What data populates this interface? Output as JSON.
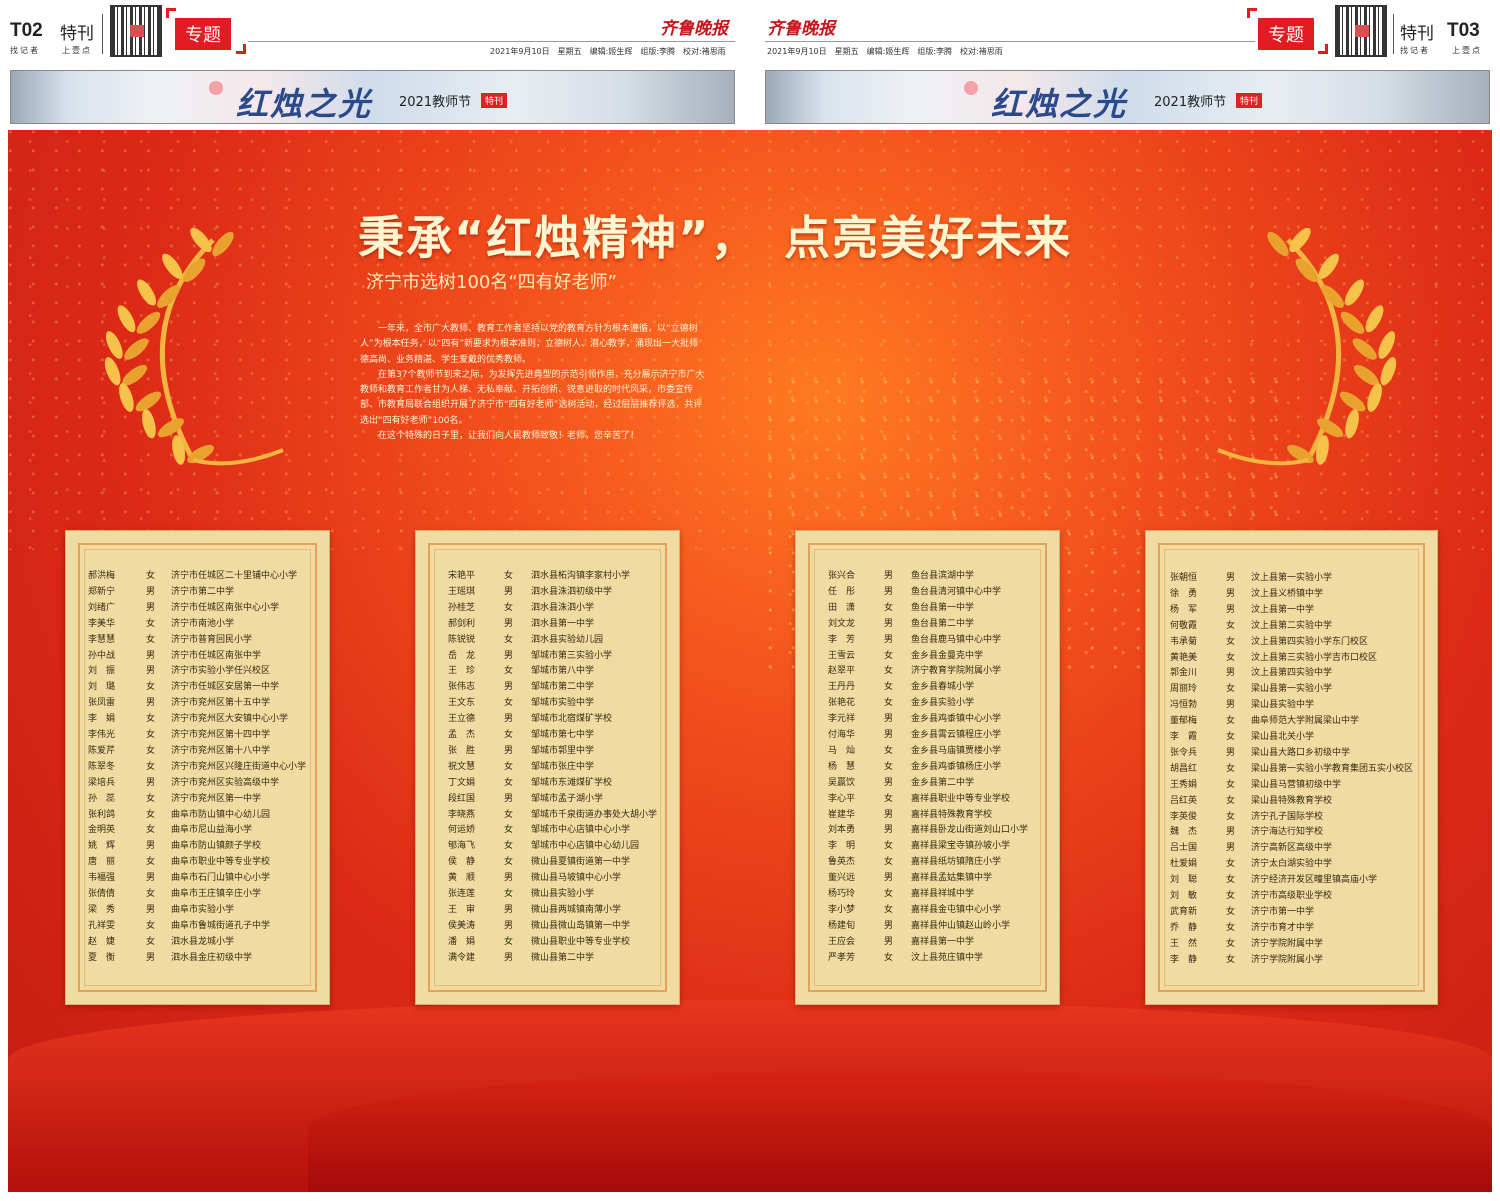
{
  "header_left": {
    "page": "T02",
    "section": "特刊",
    "tagline_left": "找记者",
    "tagline_right": "上壹点",
    "topic": "专题",
    "paper": "齐鲁晚报",
    "meta": "2021年9月10日　星期五　编辑:姬生辉　组版:李腾　校对:褚思雨"
  },
  "header_right": {
    "page": "T03",
    "section": "特刊",
    "tagline_left": "找记者",
    "tagline_right": "上壹点",
    "topic": "专题",
    "paper": "齐鲁晚报",
    "meta": "2021年9月10日　星期五　编辑:姬生辉　组版:李腾　校对:褚思雨"
  },
  "banner": {
    "title": "红烛之光",
    "subtitle": "2021教师节",
    "badge": "特刊"
  },
  "poster": {
    "title_a": "秉承“红烛精神”，",
    "title_b": "点亮美好未来",
    "subtitle": "济宁市选树100名“四有好老师”",
    "intro": [
      "一年来，全市广大教师、教育工作者坚持以党的教育方针为根本遵循，以“立德树人”为根本任务，以“四有”新要求为根本准则，立德树人、潜心教学，涌现出一大批师德高尚、业务精湛、学生爱戴的优秀教师。",
      "在第37个教师节到来之际，为发挥先进典型的示范引领作用，充分展示济宁市广大教师和教育工作者甘为人梯、无私奉献、开拓创新、锐意进取的时代风采，市委宣传部、市教育局联合组织开展了济宁市“四有好老师”选树活动，经过层层推荐评选，共评选出“四有好老师”100名。",
      "在这个特殊的日子里，让我们向人民教师致敬！老师，您辛苦了！"
    ]
  },
  "lists": [
    [
      [
        "郝洪梅",
        "女",
        "济宁市任城区二十里铺中心小学"
      ],
      [
        "郑新宁",
        "男",
        "济宁市第二中学"
      ],
      [
        "刘绪广",
        "男",
        "济宁市任城区南张中心小学"
      ],
      [
        "李美华",
        "女",
        "济宁市南池小学"
      ],
      [
        "李慧慧",
        "女",
        "济宁市普育回民小学"
      ],
      [
        "孙中战",
        "男",
        "济宁市任城区南张中学"
      ],
      [
        "刘　振",
        "男",
        "济宁市实验小学任兴校区"
      ],
      [
        "刘　璐",
        "女",
        "济宁市任城区安居第一中学"
      ],
      [
        "张凤雷",
        "男",
        "济宁市兖州区第十五中学"
      ],
      [
        "李　娟",
        "女",
        "济宁市兖州区大安镇中心小学"
      ],
      [
        "李伟光",
        "女",
        "济宁市兖州区第十四中学"
      ],
      [
        "陈爱芹",
        "女",
        "济宁市兖州区第十八中学"
      ],
      [
        "陈翠冬",
        "女",
        "济宁市兖州区兴隆庄街道中心小学"
      ],
      [
        "梁培兵",
        "男",
        "济宁市兖州区实验高级中学"
      ],
      [
        "孙　蕊",
        "女",
        "济宁市兖州区第一中学"
      ],
      [
        "张利鸽",
        "女",
        "曲阜市防山镇中心幼儿园"
      ],
      [
        "金明英",
        "女",
        "曲阜市尼山益海小学"
      ],
      [
        "姚　辉",
        "男",
        "曲阜市防山镇颜子学校"
      ],
      [
        "唐　丽",
        "女",
        "曲阜市职业中等专业学校"
      ],
      [
        "韦福强",
        "男",
        "曲阜市石门山镇中心小学"
      ],
      [
        "张倩倩",
        "女",
        "曲阜市王庄镇辛庄小学"
      ],
      [
        "梁　秀",
        "男",
        "曲阜市实验小学"
      ],
      [
        "孔祥雯",
        "女",
        "曲阜市鲁城街道孔子中学"
      ],
      [
        "赵　婕",
        "女",
        "泗水县龙城小学"
      ],
      [
        "夏　衡",
        "男",
        "泗水县金庄初级中学"
      ]
    ],
    [
      [
        "宋艳平",
        "女",
        "泗水县柘沟镇李家村小学"
      ],
      [
        "王瑶琪",
        "男",
        "泗水县洙泗初级中学"
      ],
      [
        "孙桂芝",
        "女",
        "泗水县洙泗小学"
      ],
      [
        "郝剑利",
        "男",
        "泗水县第一中学"
      ],
      [
        "陈锐锐",
        "女",
        "泗水县实验幼儿园"
      ],
      [
        "岳　龙",
        "男",
        "邹城市第三实验小学"
      ],
      [
        "王　珍",
        "女",
        "邹城市第八中学"
      ],
      [
        "张伟志",
        "男",
        "邹城市第二中学"
      ],
      [
        "王文东",
        "女",
        "邹城市实验中学"
      ],
      [
        "王立德",
        "男",
        "邹城市北宿煤矿学校"
      ],
      [
        "孟　杰",
        "女",
        "邹城市第七中学"
      ],
      [
        "张　胜",
        "男",
        "邹城市郭里中学"
      ],
      [
        "祝文慧",
        "女",
        "邹城市张庄中学"
      ],
      [
        "丁文娟",
        "女",
        "邹城市东滩煤矿学校"
      ],
      [
        "段红国",
        "男",
        "邹城市孟子湖小学"
      ],
      [
        "李晓燕",
        "女",
        "邹城市千泉街道办事处大胡小学"
      ],
      [
        "何运娇",
        "女",
        "邹城市中心店镇中心小学"
      ],
      [
        "郇海飞",
        "女",
        "邹城市中心店镇中心幼儿园"
      ],
      [
        "侯　静",
        "女",
        "微山县夏镇街道第一中学"
      ],
      [
        "黄　顺",
        "男",
        "微山县马坡镇中心小学"
      ],
      [
        "张连莲",
        "女",
        "微山县实验小学"
      ],
      [
        "王　审",
        "男",
        "微山县两城镇南薄小学"
      ],
      [
        "侯美涛",
        "男",
        "微山县微山岛镇第一中学"
      ],
      [
        "潘　娟",
        "女",
        "微山县职业中等专业学校"
      ],
      [
        "满令建",
        "男",
        "微山县第二中学"
      ]
    ],
    [
      [
        "张兴合",
        "男",
        "鱼台县滨湖中学"
      ],
      [
        "任　彤",
        "男",
        "鱼台县清河镇中心中学"
      ],
      [
        "田　潇",
        "女",
        "鱼台县第一中学"
      ],
      [
        "刘文龙",
        "男",
        "鱼台县第二中学"
      ],
      [
        "李　芳",
        "男",
        "鱼台县鹿马镇中心中学"
      ],
      [
        "王雪云",
        "女",
        "金乡县金曼克中学"
      ],
      [
        "赵翠平",
        "女",
        "济宁教育学院附属小学"
      ],
      [
        "王丹丹",
        "女",
        "金乡县春城小学"
      ],
      [
        "张艳花",
        "女",
        "金乡县实验小学"
      ],
      [
        "李元祥",
        "男",
        "金乡县鸡黍镇中心小学"
      ],
      [
        "付海华",
        "男",
        "金乡县霄云镇程庄小学"
      ],
      [
        "马　灿",
        "女",
        "金乡县马庙镇贾楼小学"
      ],
      [
        "杨　慧",
        "女",
        "金乡县鸡黍镇杨庄小学"
      ],
      [
        "吴赢饮",
        "男",
        "金乡县第二中学"
      ],
      [
        "李心平",
        "女",
        "嘉祥县职业中等专业学校"
      ],
      [
        "崔建华",
        "男",
        "嘉祥县特殊教育学校"
      ],
      [
        "刘本勇",
        "男",
        "嘉祥县卧龙山街道刘山口小学"
      ],
      [
        "李　明",
        "女",
        "嘉祥县梁宝寺镇孙坡小学"
      ],
      [
        "鲁英杰",
        "女",
        "嘉祥县纸坊镇隋庄小学"
      ],
      [
        "董兴远",
        "男",
        "嘉祥县孟姑集镇中学"
      ],
      [
        "杨巧玲",
        "女",
        "嘉祥县祥城中学"
      ],
      [
        "李小梦",
        "女",
        "嘉祥县金屯镇中心小学"
      ],
      [
        "杨建旬",
        "男",
        "嘉祥县仲山镇赵山岭小学"
      ],
      [
        "王应会",
        "男",
        "嘉祥县第一中学"
      ],
      [
        "严孝芳",
        "女",
        "汶上县苑庄镇中学"
      ]
    ],
    [
      [
        "张朝恒",
        "男",
        "汶上县第一实验小学"
      ],
      [
        "徐　勇",
        "男",
        "汶上县义桥镇中学"
      ],
      [
        "杨　军",
        "男",
        "汶上县第一中学"
      ],
      [
        "何敬霞",
        "女",
        "汶上县第二实验中学"
      ],
      [
        "韦承菊",
        "女",
        "汶上县第四实验小学东门校区"
      ],
      [
        "黄艳美",
        "女",
        "汶上县第三实验小学吉市口校区"
      ],
      [
        "郭金川",
        "男",
        "汶上县第四实验中学"
      ],
      [
        "周丽玲",
        "女",
        "梁山县第一实验小学"
      ],
      [
        "冯恒勃",
        "男",
        "梁山县实验中学"
      ],
      [
        "董郁梅",
        "女",
        "曲阜师范大学附属梁山中学"
      ],
      [
        "李　霞",
        "女",
        "梁山县北关小学"
      ],
      [
        "张令兵",
        "男",
        "梁山县大路口乡初级中学"
      ],
      [
        "胡昌红",
        "女",
        "梁山县第一实验小学教育集团五实小校区"
      ],
      [
        "王秀娟",
        "女",
        "梁山县马营镇初级中学"
      ],
      [
        "吕红英",
        "女",
        "梁山县特殊教育学校"
      ],
      [
        "李英俊",
        "女",
        "济宁孔子国际学校"
      ],
      [
        "魏　杰",
        "男",
        "济宁海达行知学校"
      ],
      [
        "吕士国",
        "男",
        "济宁高新区高级中学"
      ],
      [
        "杜爱娟",
        "女",
        "济宁太白湖实验中学"
      ],
      [
        "刘　聪",
        "女",
        "济宁经济开发区疃里镇高庙小学"
      ],
      [
        "刘　敏",
        "女",
        "济宁市高级职业学校"
      ],
      [
        "武育新",
        "女",
        "济宁市第一中学"
      ],
      [
        "乔　静",
        "女",
        "济宁市育才中学"
      ],
      [
        "王　然",
        "女",
        "济宁学院附属中学"
      ],
      [
        "李　静",
        "女",
        "济宁学院附属小学"
      ]
    ]
  ],
  "colors": {
    "red": "#e01b22",
    "card": "#f0dba3",
    "title": "#fff5d0"
  }
}
